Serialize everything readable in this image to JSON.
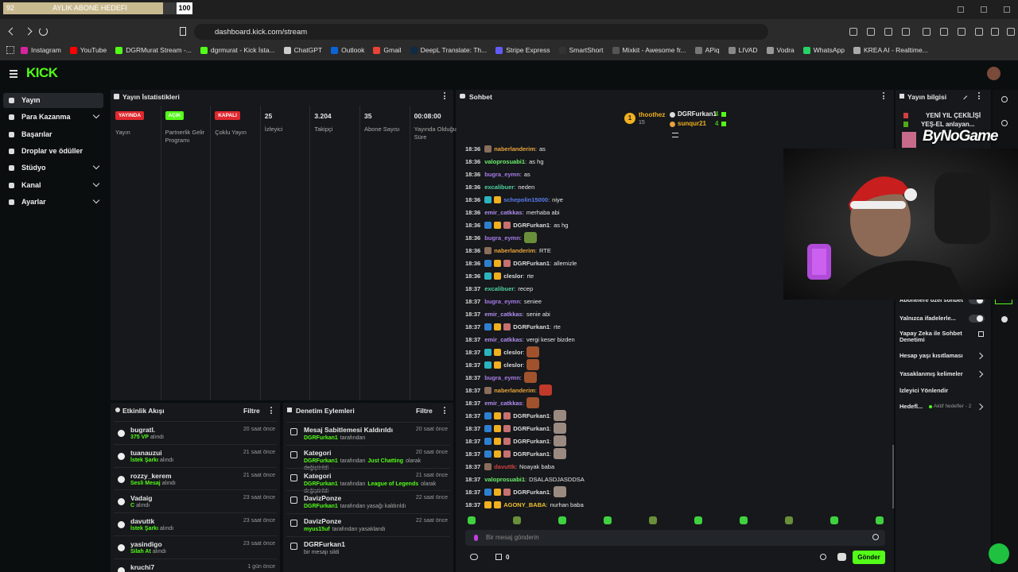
{
  "goal": {
    "current": 92,
    "title": "AYLIK ABONE HEDEFI",
    "target": 100
  },
  "browser": {
    "url": "dashboard.kick.com/stream",
    "bookmarks": [
      {
        "label": "Instagram",
        "color": "#d6249f"
      },
      {
        "label": "YouTube",
        "color": "#ff0000"
      },
      {
        "label": "DGRMurat Stream -...",
        "color": "#53fc18"
      },
      {
        "label": "dgrmurat - Kick İsta...",
        "color": "#53fc18"
      },
      {
        "label": "ChatGPT",
        "color": "#cccccc"
      },
      {
        "label": "Outlook",
        "color": "#0a64d6"
      },
      {
        "label": "Gmail",
        "color": "#ea4335"
      },
      {
        "label": "DeepL Translate: Th...",
        "color": "#0f2b46"
      },
      {
        "label": "Stripe Express",
        "color": "#635bff"
      },
      {
        "label": "SmartShort",
        "color": "#333333"
      },
      {
        "label": "Mixkit - Awesome fr...",
        "color": "#555555"
      },
      {
        "label": "APiq",
        "color": "#777777"
      },
      {
        "label": "LIVAD",
        "color": "#888888"
      },
      {
        "label": "Vodra",
        "color": "#999999"
      },
      {
        "label": "WhatsApp",
        "color": "#25d366"
      },
      {
        "label": "KREA AI - Realtime...",
        "color": "#aaaaaa"
      }
    ]
  },
  "header": {
    "logo": "KICK"
  },
  "nav": [
    {
      "label": "Yayın",
      "expandable": false,
      "active": true
    },
    {
      "label": "Para Kazanma",
      "expandable": true,
      "active": false
    },
    {
      "label": "Başarılar",
      "expandable": false,
      "active": false
    },
    {
      "label": "Droplar ve ödüller",
      "expandable": false,
      "active": false
    },
    {
      "label": "Stüdyo",
      "expandable": true,
      "active": false
    },
    {
      "label": "Kanal",
      "expandable": true,
      "active": false
    },
    {
      "label": "Ayarlar",
      "expandable": true,
      "active": false
    }
  ],
  "stats": {
    "title": "Yayın İstatistikleri",
    "statuses": [
      {
        "badge": "YAYINDA",
        "color": "#e0282e",
        "label": "Yayın"
      },
      {
        "badge": "AÇIK",
        "color": "#53fc18",
        "label": "Partnerlik Gelir Programı"
      },
      {
        "badge": "KAPALI",
        "color": "#e0282e",
        "label": "Çoklu Yayın"
      }
    ],
    "metrics": [
      {
        "value": 25,
        "label": "İzleyici"
      },
      {
        "value": "3.204",
        "label": "Takipçi"
      },
      {
        "value": 35,
        "label": "Abone Sayısı"
      },
      {
        "value": "00:08:00",
        "label": "Yayında Olduğu Süre"
      }
    ]
  },
  "activity": {
    "title": "Etkinlik Akışı",
    "filter": "Filtre",
    "items": [
      {
        "user": "bugratl.",
        "reward": "375 VP",
        "suffix": "alındı",
        "time": "20 saat önce"
      },
      {
        "user": "tuanauzui",
        "reward": "İstek Şarkı",
        "suffix": "alındı",
        "time": "21 saat önce"
      },
      {
        "user": "rozzy_kerem",
        "reward": "Sesli Mesaj",
        "suffix": "alındı",
        "time": "21 saat önce"
      },
      {
        "user": "Vadaig",
        "reward": "C",
        "suffix": "alındı",
        "time": "23 saat önce"
      },
      {
        "user": "davuttk",
        "reward": "İstek Şarkı",
        "suffix": "alındı",
        "time": "23 saat önce"
      },
      {
        "user": "yasindigo",
        "reward": "Silah At",
        "suffix": "alındı",
        "time": "23 saat önce"
      },
      {
        "user": "kruchi7",
        "time": "1 gün önce"
      }
    ]
  },
  "moderation": {
    "title": "Denetim Eylemleri",
    "filter": "Filtre",
    "items": [
      {
        "action": "Mesaj Sabitlemesi Kaldırıldı",
        "time": "20 saat önce",
        "detail": [
          {
            "text": "DGRFurkan1",
            "hl": true
          },
          {
            "text": "tarafından",
            "hl": false
          }
        ]
      },
      {
        "action": "Kategori",
        "time": "20 saat önce",
        "detail": [
          {
            "text": "DGRFurkan1",
            "hl": true
          },
          {
            "text": "tarafından",
            "hl": false
          },
          {
            "text": "Just Chatting",
            "hl": true
          },
          {
            "text": "olarak değiştirildi",
            "hl": false
          }
        ]
      },
      {
        "action": "Kategori",
        "time": "21 saat önce",
        "detail": [
          {
            "text": "DGRFurkan1",
            "hl": true
          },
          {
            "text": "tarafından",
            "hl": false
          },
          {
            "text": "League of Legends",
            "hl": true
          },
          {
            "text": "olarak değiştirildi",
            "hl": false
          }
        ]
      },
      {
        "action": "DavizPonze",
        "time": "22 saat önce",
        "detail": [
          {
            "text": "DGRFurkan1",
            "hl": true
          },
          {
            "text": "tarafından yasağı kaldırıldı",
            "hl": false
          }
        ]
      },
      {
        "action": "DavizPonze",
        "time": "22 saat önce",
        "detail": [
          {
            "text": "myus15uf",
            "hl": true
          },
          {
            "text": "tarafından yasaklandı",
            "hl": false
          }
        ]
      },
      {
        "action": "DGRFurkan1",
        "detail": [
          {
            "text": "bir mesajı sildi",
            "hl": false
          }
        ]
      }
    ]
  },
  "chat": {
    "title": "Sohbet",
    "separator": ":",
    "leaders": [
      {
        "rank": 1,
        "name": "thoothez",
        "count": 15
      },
      {
        "name": "DGRFurkan1",
        "count": 4
      },
      {
        "name": "sunqur21",
        "count": 4
      }
    ],
    "messages": [
      {
        "time": "18:36",
        "user": "naberlanderim",
        "color": "#e8a33d",
        "badges": [
          "#8a6d5a"
        ],
        "text": "as"
      },
      {
        "time": "18:36",
        "user": "valoprosuabi1",
        "color": "#6cf06c",
        "badges": [],
        "text": "as hg"
      },
      {
        "time": "18:36",
        "user": "bugra_eymn",
        "color": "#a77ce8",
        "badges": [],
        "text": "as"
      },
      {
        "time": "18:36",
        "user": "excalibuer",
        "color": "#4fd1a0",
        "badges": [],
        "text": "neden"
      },
      {
        "time": "18:36",
        "user": "schepolin15000",
        "color": "#5a7cf0",
        "badges": [
          "#2bb3c0",
          "#f0b020"
        ],
        "text": "niye"
      },
      {
        "time": "18:36",
        "user": "emir_catkkas",
        "color": "#b08cf0",
        "badges": [],
        "text": "merhaba abi"
      },
      {
        "time": "18:36",
        "user": "DGRFurkan1",
        "color": "#dddddd",
        "badges": [
          "#2f7fd0",
          "#f0b020",
          "#c77070"
        ],
        "text": "as hg"
      },
      {
        "time": "18:36",
        "user": "bugra_eymn",
        "color": "#a77ce8",
        "badges": [],
        "emote": "#6a8f3a"
      },
      {
        "time": "18:36",
        "user": "naberlanderim",
        "color": "#e8a33d",
        "badges": [
          "#8a6d5a"
        ],
        "text": "RTE"
      },
      {
        "time": "18:36",
        "user": "DGRFurkan1",
        "color": "#dddddd",
        "badges": [
          "#2f7fd0",
          "#f0b020",
          "#c77070"
        ],
        "text": "allemizle"
      },
      {
        "time": "18:36",
        "user": "cleslor",
        "color": "#dddddd",
        "badges": [
          "#2bb3c0",
          "#f0b020"
        ],
        "text": "rte"
      },
      {
        "time": "18:37",
        "user": "excalibuer",
        "color": "#4fd1a0",
        "badges": [],
        "text": "recep"
      },
      {
        "time": "18:37",
        "user": "bugra_eymn",
        "color": "#a77ce8",
        "badges": [],
        "text": "seniee"
      },
      {
        "time": "18:37",
        "user": "emir_catkkas",
        "color": "#b08cf0",
        "badges": [],
        "text": "senie abi"
      },
      {
        "time": "18:37",
        "user": "DGRFurkan1",
        "color": "#dddddd",
        "badges": [
          "#2f7fd0",
          "#f0b020",
          "#c77070"
        ],
        "text": "rte"
      },
      {
        "time": "18:37",
        "user": "emir_catkkas",
        "color": "#b08cf0",
        "badges": [],
        "text": "vergi keser bizden"
      },
      {
        "time": "18:37",
        "user": "cleslor",
        "color": "#dddddd",
        "badges": [
          "#2bb3c0",
          "#f0b020"
        ],
        "emote": "#a0522d"
      },
      {
        "time": "18:37",
        "user": "cleslor",
        "color": "#dddddd",
        "badges": [
          "#2bb3c0",
          "#f0b020"
        ],
        "emote": "#a0522d"
      },
      {
        "time": "18:37",
        "user": "bugra_eymn",
        "color": "#a77ce8",
        "badges": [],
        "emote": "#a0522d"
      },
      {
        "time": "18:37",
        "user": "naberlanderim",
        "color": "#e8a33d",
        "badges": [
          "#8a6d5a"
        ],
        "emote": "#c0392b"
      },
      {
        "time": "18:37",
        "user": "emir_catkkas",
        "color": "#b08cf0",
        "badges": [],
        "emote": "#a0522d"
      },
      {
        "time": "18:37",
        "user": "DGRFurkan1",
        "color": "#dddddd",
        "badges": [
          "#2f7fd0",
          "#f0b020",
          "#c77070"
        ],
        "emote": "#9a8a80"
      },
      {
        "time": "18:37",
        "user": "DGRFurkan1",
        "color": "#dddddd",
        "badges": [
          "#2f7fd0",
          "#f0b020",
          "#c77070"
        ],
        "emote": "#9a8a80"
      },
      {
        "time": "18:37",
        "user": "DGRFurkan1",
        "color": "#dddddd",
        "badges": [
          "#2f7fd0",
          "#f0b020",
          "#c77070"
        ],
        "emote": "#9a8a80"
      },
      {
        "time": "18:37",
        "user": "DGRFurkan1",
        "color": "#dddddd",
        "badges": [
          "#2f7fd0",
          "#f0b020",
          "#c77070"
        ],
        "emote": "#9a8a80"
      },
      {
        "time": "18:37",
        "user": "davuttk",
        "color": "#d04040",
        "badges": [
          "#8a6d5a"
        ],
        "text": "Noayak baba"
      },
      {
        "time": "18:37",
        "user": "valoprosuabi1",
        "color": "#6cf06c",
        "badges": [],
        "text": "DSALASDJASDDSA"
      },
      {
        "time": "18:37",
        "user": "DGRFurkan1",
        "color": "#dddddd",
        "badges": [
          "#2f7fd0",
          "#f0b020",
          "#c77070"
        ],
        "emote": "#9a8a80"
      },
      {
        "time": "18:37",
        "user": "AGONY_BABA",
        "color": "#f0c030",
        "badges": [
          "#f0b020",
          "#f0b020"
        ],
        "text": "nurhan baba"
      }
    ],
    "placeholder": "Bir mesaj gönderin",
    "send": "Gönder",
    "viewer_count": 0
  },
  "info": {
    "title": "Yayın bilgisi",
    "stream_title": [
      "YENİ YIL ÇEKİLİŞİ",
      "YEŞ-EL anlayan..."
    ],
    "overlay": "ByNoGame",
    "settings": [
      {
        "label": "Abonelere özel sohbet",
        "control": "toggle"
      },
      {
        "label": "Yalnızca ifadelerle...",
        "control": "toggle"
      },
      {
        "label": "Yapay Zeka ile Sohbet Denetimi",
        "control": "external"
      },
      {
        "label": "Hesap yaşı kısıtlaması",
        "control": "chevron"
      },
      {
        "label": "Yasaklanmış kelimeler",
        "control": "chevron"
      },
      {
        "label": "İzleyici Yönlendir",
        "control": "none"
      },
      {
        "label": "Hedefl...",
        "control": "chevron",
        "note": "Aktif hedefler - 2"
      }
    ]
  }
}
